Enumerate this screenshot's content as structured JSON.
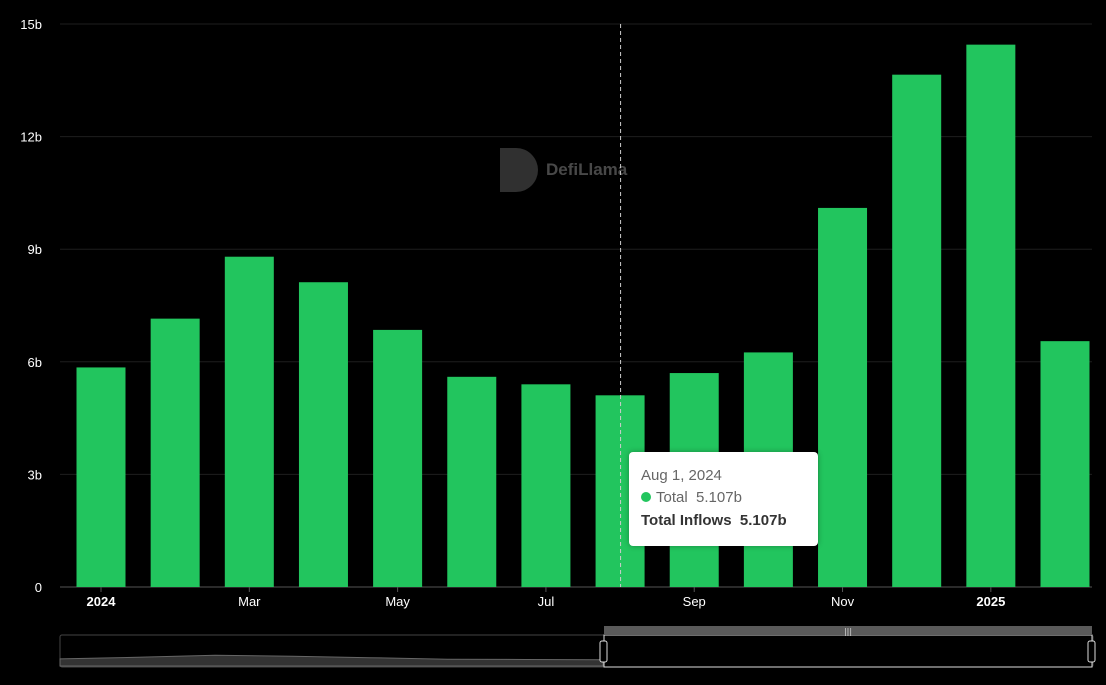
{
  "watermark": "DefiLlama",
  "tooltip": {
    "date": "Aug 1, 2024",
    "series_label": "Total",
    "series_value": "5.107b",
    "total_label": "Total Inflows",
    "total_value": "5.107b",
    "dot_color": "#22c55e"
  },
  "colors": {
    "bar": "#22c55e",
    "background": "#000000",
    "grid": "#1e1e1e"
  },
  "chart_data": {
    "type": "bar",
    "categories": [
      "2024-01",
      "2024-02",
      "2024-03",
      "2024-04",
      "2024-05",
      "2024-06",
      "2024-07",
      "2024-08",
      "2024-09",
      "2024-10",
      "2024-11",
      "2024-12",
      "2025-01",
      "2025-02"
    ],
    "series": [
      {
        "name": "Total",
        "values": [
          5.85,
          7.15,
          8.8,
          8.12,
          6.85,
          5.6,
          5.4,
          5.107,
          5.7,
          6.25,
          10.1,
          13.65,
          14.45,
          6.55
        ]
      }
    ],
    "x_tick_labels": [
      {
        "index": 0,
        "label": "2024",
        "bold": true
      },
      {
        "index": 2,
        "label": "Mar",
        "bold": false
      },
      {
        "index": 4,
        "label": "May",
        "bold": false
      },
      {
        "index": 6,
        "label": "Jul",
        "bold": false
      },
      {
        "index": 8,
        "label": "Sep",
        "bold": false
      },
      {
        "index": 10,
        "label": "Nov",
        "bold": false
      },
      {
        "index": 12,
        "label": "2025",
        "bold": true
      }
    ],
    "y_ticks": [
      {
        "value": 0,
        "label": "0"
      },
      {
        "value": 3,
        "label": "3b"
      },
      {
        "value": 6,
        "label": "6b"
      },
      {
        "value": 9,
        "label": "9b"
      },
      {
        "value": 12,
        "label": "12b"
      },
      {
        "value": 15,
        "label": "15b"
      }
    ],
    "ylim": [
      0,
      15
    ],
    "highlight_index": 7,
    "grid": true,
    "xlabel": "",
    "ylabel": "",
    "title": ""
  }
}
